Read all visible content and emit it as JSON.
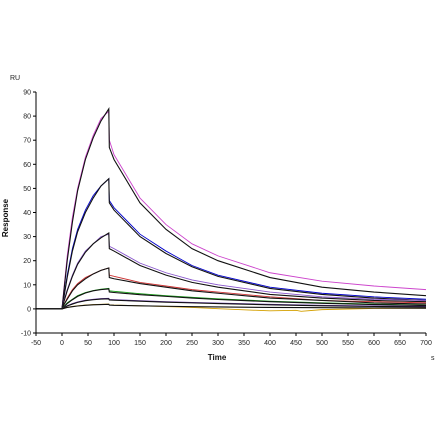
{
  "chart_data": {
    "type": "line",
    "title": "",
    "xlabel": "Time",
    "ylabel": "Response",
    "x_unit": "s",
    "y_unit": "RU",
    "xlim": [
      -50,
      700
    ],
    "ylim": [
      -10,
      90
    ],
    "x_ticks": [
      -50,
      0,
      50,
      100,
      150,
      200,
      250,
      300,
      350,
      400,
      450,
      500,
      550,
      600,
      650,
      700
    ],
    "y_ticks": [
      -10,
      0,
      10,
      20,
      30,
      40,
      50,
      60,
      70,
      80,
      90
    ],
    "grid": false,
    "legend": "none",
    "association_start": 0,
    "dissociation_start": 90,
    "series": [
      {
        "color": "#cc44cc",
        "values": [
          [
            -50,
            0
          ],
          [
            0,
            0
          ],
          [
            3,
            7
          ],
          [
            10,
            22
          ],
          [
            20,
            38
          ],
          [
            30,
            50
          ],
          [
            45,
            63
          ],
          [
            60,
            72
          ],
          [
            75,
            79
          ],
          [
            90,
            82
          ],
          [
            91,
            70
          ],
          [
            100,
            64
          ],
          [
            150,
            46
          ],
          [
            200,
            35
          ],
          [
            250,
            27
          ],
          [
            300,
            22
          ],
          [
            400,
            15
          ],
          [
            500,
            11.5
          ],
          [
            600,
            9.5
          ],
          [
            700,
            8
          ]
        ]
      },
      {
        "color": "#111111",
        "values": [
          [
            -50,
            0
          ],
          [
            0,
            0
          ],
          [
            3,
            6
          ],
          [
            10,
            20
          ],
          [
            20,
            36
          ],
          [
            30,
            49
          ],
          [
            45,
            62
          ],
          [
            60,
            71
          ],
          [
            75,
            78
          ],
          [
            90,
            83
          ],
          [
            91,
            67
          ],
          [
            100,
            62
          ],
          [
            150,
            44
          ],
          [
            200,
            33
          ],
          [
            250,
            25
          ],
          [
            300,
            20
          ],
          [
            400,
            13
          ],
          [
            500,
            9
          ],
          [
            600,
            7
          ],
          [
            700,
            5.5
          ]
        ]
      },
      {
        "color": "#0000cc",
        "values": [
          [
            -50,
            0
          ],
          [
            0,
            0
          ],
          [
            3,
            4
          ],
          [
            10,
            14
          ],
          [
            20,
            25
          ],
          [
            30,
            33
          ],
          [
            45,
            41
          ],
          [
            60,
            47
          ],
          [
            75,
            51
          ],
          [
            90,
            54
          ],
          [
            91,
            45
          ],
          [
            100,
            42
          ],
          [
            150,
            31
          ],
          [
            200,
            24
          ],
          [
            250,
            18
          ],
          [
            300,
            14
          ],
          [
            400,
            9
          ],
          [
            500,
            6.5
          ],
          [
            600,
            5
          ],
          [
            700,
            4
          ]
        ]
      },
      {
        "color": "#111111",
        "values": [
          [
            -50,
            0
          ],
          [
            0,
            0
          ],
          [
            3,
            4
          ],
          [
            10,
            13
          ],
          [
            20,
            24
          ],
          [
            30,
            32
          ],
          [
            45,
            40
          ],
          [
            60,
            46
          ],
          [
            75,
            51
          ],
          [
            90,
            54
          ],
          [
            91,
            44
          ],
          [
            100,
            41
          ],
          [
            150,
            30
          ],
          [
            200,
            23
          ],
          [
            250,
            17.5
          ],
          [
            300,
            13.5
          ],
          [
            400,
            8.5
          ],
          [
            500,
            6
          ],
          [
            600,
            4.5
          ],
          [
            700,
            3.5
          ]
        ]
      },
      {
        "color": "#8855cc",
        "values": [
          [
            -50,
            0
          ],
          [
            0,
            0
          ],
          [
            3,
            3
          ],
          [
            10,
            8
          ],
          [
            20,
            14
          ],
          [
            30,
            19
          ],
          [
            45,
            24
          ],
          [
            60,
            27
          ],
          [
            75,
            30
          ],
          [
            90,
            31
          ],
          [
            91,
            26
          ],
          [
            100,
            25
          ],
          [
            150,
            19
          ],
          [
            200,
            15
          ],
          [
            250,
            12
          ],
          [
            300,
            10
          ],
          [
            400,
            7
          ],
          [
            500,
            5
          ],
          [
            600,
            4
          ],
          [
            700,
            3.5
          ]
        ]
      },
      {
        "color": "#111111",
        "values": [
          [
            -50,
            0
          ],
          [
            0,
            0
          ],
          [
            3,
            2.5
          ],
          [
            10,
            7.5
          ],
          [
            20,
            13.5
          ],
          [
            30,
            18.5
          ],
          [
            45,
            23.5
          ],
          [
            60,
            27
          ],
          [
            75,
            29.5
          ],
          [
            90,
            31.5
          ],
          [
            91,
            25
          ],
          [
            100,
            24
          ],
          [
            150,
            18
          ],
          [
            200,
            14
          ],
          [
            250,
            11
          ],
          [
            300,
            9
          ],
          [
            400,
            6
          ],
          [
            500,
            4.5
          ],
          [
            600,
            3.5
          ],
          [
            700,
            3
          ]
        ]
      },
      {
        "color": "#cc3333",
        "values": [
          [
            -50,
            0
          ],
          [
            0,
            0
          ],
          [
            3,
            1.5
          ],
          [
            10,
            4.5
          ],
          [
            20,
            8
          ],
          [
            30,
            10.5
          ],
          [
            45,
            13
          ],
          [
            60,
            14.5
          ],
          [
            75,
            16
          ],
          [
            90,
            17
          ],
          [
            91,
            14
          ],
          [
            100,
            13.5
          ],
          [
            150,
            11
          ],
          [
            200,
            9.5
          ],
          [
            250,
            8
          ],
          [
            300,
            7
          ],
          [
            400,
            5
          ],
          [
            500,
            3.5
          ],
          [
            600,
            3
          ],
          [
            700,
            2.5
          ]
        ]
      },
      {
        "color": "#111111",
        "values": [
          [
            -50,
            0
          ],
          [
            0,
            0
          ],
          [
            3,
            1.5
          ],
          [
            10,
            4
          ],
          [
            20,
            7.5
          ],
          [
            30,
            10
          ],
          [
            45,
            12.5
          ],
          [
            60,
            14.5
          ],
          [
            75,
            16
          ],
          [
            90,
            17
          ],
          [
            91,
            13
          ],
          [
            100,
            12.5
          ],
          [
            150,
            10.5
          ],
          [
            200,
            9
          ],
          [
            250,
            7.5
          ],
          [
            300,
            6.5
          ],
          [
            400,
            4.5
          ],
          [
            500,
            3.5
          ],
          [
            600,
            2.5
          ],
          [
            700,
            2
          ]
        ]
      },
      {
        "color": "#119911",
        "values": [
          [
            -50,
            0
          ],
          [
            0,
            0
          ],
          [
            3,
            0.8
          ],
          [
            10,
            2.5
          ],
          [
            20,
            4
          ],
          [
            30,
            5.5
          ],
          [
            45,
            6.8
          ],
          [
            60,
            7.6
          ],
          [
            75,
            8.2
          ],
          [
            90,
            8.5
          ],
          [
            91,
            7.5
          ],
          [
            100,
            7.3
          ],
          [
            150,
            6.3
          ],
          [
            200,
            5.5
          ],
          [
            250,
            4.8
          ],
          [
            300,
            4.2
          ],
          [
            400,
            3.2
          ],
          [
            500,
            2.5
          ],
          [
            600,
            2
          ],
          [
            700,
            1.5
          ]
        ]
      },
      {
        "color": "#111111",
        "values": [
          [
            -50,
            0
          ],
          [
            0,
            0
          ],
          [
            3,
            0.7
          ],
          [
            10,
            2.2
          ],
          [
            20,
            3.8
          ],
          [
            30,
            5.2
          ],
          [
            45,
            6.6
          ],
          [
            60,
            7.5
          ],
          [
            75,
            8
          ],
          [
            90,
            8.3
          ],
          [
            91,
            7
          ],
          [
            100,
            6.8
          ],
          [
            150,
            5.9
          ],
          [
            200,
            5.2
          ],
          [
            250,
            4.5
          ],
          [
            300,
            3.9
          ],
          [
            400,
            3
          ],
          [
            500,
            2.3
          ],
          [
            600,
            1.8
          ],
          [
            700,
            1.4
          ]
        ]
      },
      {
        "color": "#6633aa",
        "values": [
          [
            -50,
            0
          ],
          [
            0,
            0
          ],
          [
            3,
            0.5
          ],
          [
            10,
            1.3
          ],
          [
            20,
            2.2
          ],
          [
            30,
            2.9
          ],
          [
            45,
            3.6
          ],
          [
            60,
            4
          ],
          [
            75,
            4.3
          ],
          [
            90,
            4.4
          ],
          [
            91,
            3.9
          ],
          [
            100,
            3.8
          ],
          [
            150,
            3.4
          ],
          [
            200,
            3
          ],
          [
            250,
            2.7
          ],
          [
            300,
            2.4
          ],
          [
            400,
            1.9
          ],
          [
            500,
            1.5
          ],
          [
            600,
            1.2
          ],
          [
            700,
            1
          ]
        ]
      },
      {
        "color": "#111111",
        "values": [
          [
            -50,
            0
          ],
          [
            0,
            0
          ],
          [
            3,
            0.4
          ],
          [
            10,
            1.2
          ],
          [
            20,
            2
          ],
          [
            30,
            2.7
          ],
          [
            45,
            3.4
          ],
          [
            60,
            3.8
          ],
          [
            75,
            4.1
          ],
          [
            90,
            4.2
          ],
          [
            91,
            3.7
          ],
          [
            100,
            3.6
          ],
          [
            150,
            3.2
          ],
          [
            200,
            2.8
          ],
          [
            250,
            2.5
          ],
          [
            300,
            2.2
          ],
          [
            400,
            1.7
          ],
          [
            500,
            1.3
          ],
          [
            600,
            1
          ],
          [
            700,
            0.8
          ]
        ]
      },
      {
        "color": "#d4a000",
        "values": [
          [
            -50,
            0
          ],
          [
            0,
            0
          ],
          [
            3,
            0.2
          ],
          [
            10,
            0.6
          ],
          [
            20,
            1
          ],
          [
            30,
            1.3
          ],
          [
            45,
            1.6
          ],
          [
            60,
            1.8
          ],
          [
            75,
            1.9
          ],
          [
            90,
            2
          ],
          [
            91,
            1.7
          ],
          [
            100,
            1.6
          ],
          [
            150,
            1.3
          ],
          [
            200,
            1
          ],
          [
            250,
            0.6
          ],
          [
            300,
            0.1
          ],
          [
            350,
            -0.4
          ],
          [
            400,
            -0.8
          ],
          [
            450,
            -0.6
          ],
          [
            460,
            -1
          ],
          [
            500,
            -0.3
          ],
          [
            600,
            0.2
          ],
          [
            700,
            0.3
          ]
        ]
      },
      {
        "color": "#111111",
        "values": [
          [
            -50,
            0
          ],
          [
            0,
            0
          ],
          [
            3,
            0.2
          ],
          [
            10,
            0.6
          ],
          [
            20,
            0.9
          ],
          [
            30,
            1.2
          ],
          [
            45,
            1.5
          ],
          [
            60,
            1.7
          ],
          [
            75,
            1.8
          ],
          [
            90,
            1.9
          ],
          [
            91,
            1.6
          ],
          [
            100,
            1.5
          ],
          [
            150,
            1.3
          ],
          [
            200,
            1.1
          ],
          [
            250,
            0.9
          ],
          [
            300,
            0.8
          ],
          [
            400,
            0.6
          ],
          [
            500,
            0.5
          ],
          [
            600,
            0.4
          ],
          [
            700,
            0.3
          ]
        ]
      }
    ]
  }
}
